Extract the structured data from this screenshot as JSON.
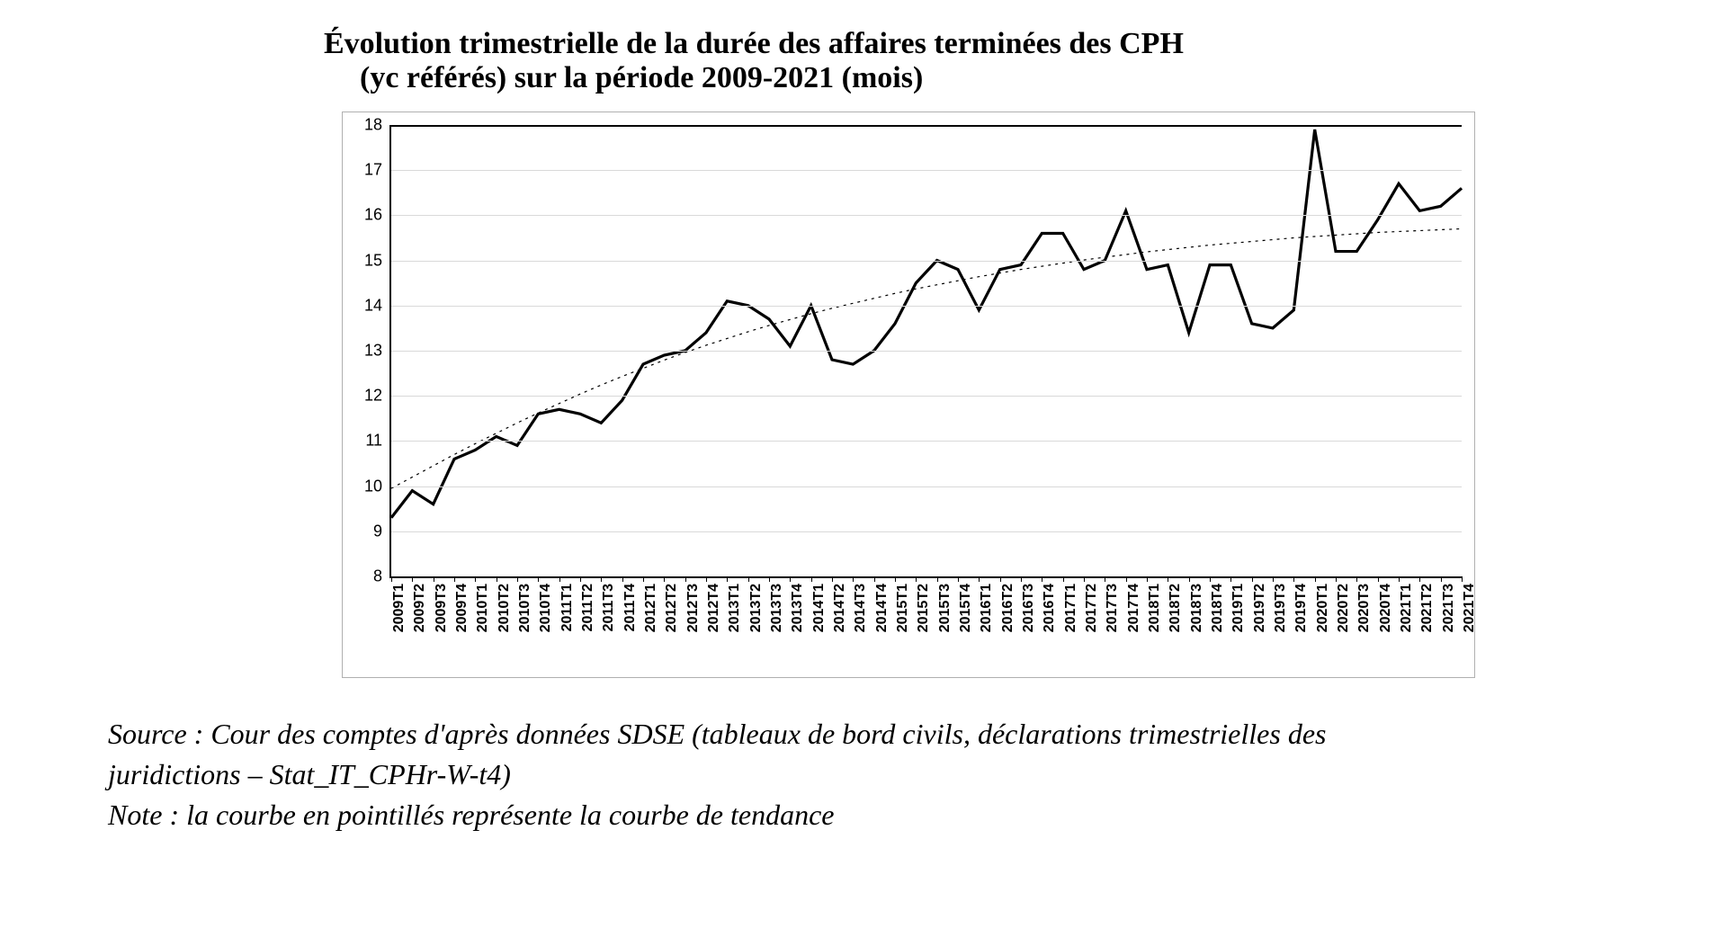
{
  "title_line1": "Évolution trimestrielle de la durée des affaires terminées des CPH",
  "title_line2": "(yc référés) sur la période 2009-2021 (mois)",
  "chart": {
    "type": "line",
    "ylim": [
      8,
      18
    ],
    "ytick_step": 1,
    "yticks": [
      8,
      9,
      10,
      11,
      12,
      13,
      14,
      15,
      16,
      17,
      18
    ],
    "x_labels": [
      "2009T1",
      "2009T2",
      "2009T3",
      "2009T4",
      "2010T1",
      "2010T2",
      "2010T3",
      "2010T4",
      "2011T1",
      "2011T2",
      "2011T3",
      "2011T4",
      "2012T1",
      "2012T2",
      "2012T3",
      "2012T4",
      "2013T1",
      "2013T2",
      "2013T3",
      "2013T4",
      "2014T1",
      "2014T2",
      "2014T3",
      "2014T4",
      "2015T1",
      "2015T2",
      "2015T3",
      "2015T4",
      "2016T1",
      "2016T2",
      "2016T3",
      "2016T4",
      "2017T1",
      "2017T2",
      "2017T3",
      "2017T4",
      "2018T1",
      "2018T2",
      "2018T3",
      "2018T4",
      "2019T1",
      "2019T2",
      "2019T3",
      "2019T4",
      "2020T1",
      "2020T2",
      "2020T3",
      "2020T4",
      "2021T1",
      "2021T2",
      "2021T3",
      "2021T4"
    ],
    "series_values": [
      9.3,
      9.9,
      9.6,
      10.6,
      10.8,
      11.1,
      10.9,
      11.6,
      11.7,
      11.6,
      11.4,
      11.9,
      12.7,
      12.9,
      13.0,
      13.4,
      14.1,
      14.0,
      13.7,
      13.1,
      14.0,
      12.8,
      12.7,
      13.0,
      13.6,
      14.5,
      15.0,
      14.8,
      13.9,
      14.8,
      14.9,
      15.6,
      15.6,
      14.8,
      15.0,
      16.1,
      14.8,
      14.9,
      13.4,
      14.9,
      14.9,
      13.6,
      13.5,
      13.9,
      17.9,
      15.2,
      15.2,
      15.9,
      16.7,
      16.1,
      16.2,
      16.6
    ],
    "trend_values": [
      9.95,
      10.2,
      10.45,
      10.7,
      10.94,
      11.17,
      11.4,
      11.62,
      11.83,
      12.04,
      12.24,
      12.43,
      12.61,
      12.79,
      12.96,
      13.12,
      13.27,
      13.42,
      13.56,
      13.69,
      13.82,
      13.94,
      14.05,
      14.16,
      14.27,
      14.37,
      14.46,
      14.55,
      14.64,
      14.72,
      14.8,
      14.87,
      14.94,
      15.01,
      15.07,
      15.13,
      15.19,
      15.24,
      15.29,
      15.34,
      15.38,
      15.42,
      15.46,
      15.5,
      15.53,
      15.56,
      15.59,
      15.62,
      15.64,
      15.66,
      15.68,
      15.7
    ],
    "line_color": "#000000",
    "line_width": 3.2,
    "trend_color": "#000000",
    "trend_width": 1.2,
    "trend_dash": "3,5",
    "grid_color": "#d9d9d9",
    "background_color": "#ffffff",
    "axis_color": "#000000",
    "ylabel_fontsize": 18,
    "xlabel_fontsize": 16,
    "xlabel_fontweight": "bold",
    "xlabel_rotation": -90
  },
  "source_line1": "Source : Cour des comptes d'après données SDSE (tableaux de bord civils, déclarations trimestrielles des",
  "source_line2": "juridictions – Stat_IT_CPHr-W-t4)",
  "note_line": "Note : la courbe en pointillés représente la courbe de tendance"
}
